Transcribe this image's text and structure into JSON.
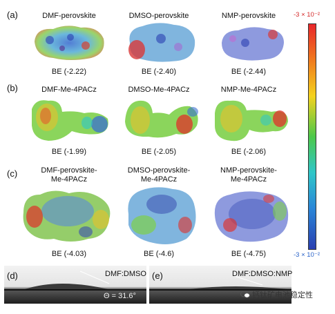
{
  "panels": {
    "a": {
      "letter": "(a)",
      "items": [
        {
          "title": "DMF-perovskite",
          "be": "BE (-2.22)"
        },
        {
          "title": "DMSO-perovskite",
          "be": "BE (-2.40)"
        },
        {
          "title": "NMP-perovskite",
          "be": "BE (-2.44)"
        }
      ]
    },
    "b": {
      "letter": "(b)",
      "items": [
        {
          "title": "DMF-Me-4PACz",
          "be": "BE (-1.99)"
        },
        {
          "title": "DMSO-Me-4PACz",
          "be": "BE (-2.05)"
        },
        {
          "title": "NMP-Me-4PACz",
          "be": "BE (-2.06)"
        }
      ]
    },
    "c": {
      "letter": "(c)",
      "items": [
        {
          "title1": "DMF-perovskite-",
          "title2": "Me-4PACz",
          "be": "BE (-4.03)"
        },
        {
          "title1": "DMSO-perovskite-",
          "title2": "Me-4PACz",
          "be": "BE (-4.6)"
        },
        {
          "title1": "NMP-perovskite-",
          "title2": "Me-4PACz",
          "be": "BE (-4.75)"
        }
      ]
    },
    "d": {
      "letter": "(d)",
      "label": "DMF:DMSO",
      "angle": "Θ = 31.6°"
    },
    "e": {
      "letter": "(e)",
      "label": "DMF:DMSO:NMP"
    }
  },
  "colorbar": {
    "top_label": "-3 × 10⁻²",
    "bottom_label": "-3 × 10⁻²",
    "top_color": "#e8262b",
    "bottom_color": "#2a63c9"
  },
  "watermark": "钙钛矿电池稳定性"
}
